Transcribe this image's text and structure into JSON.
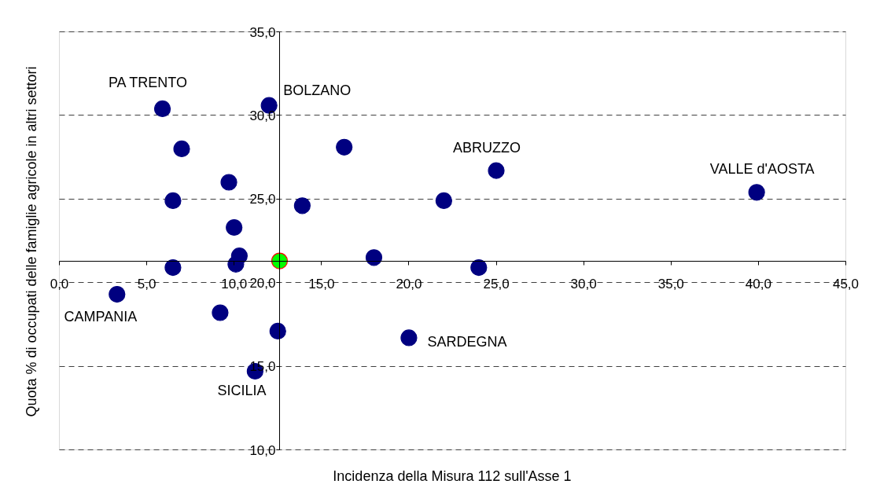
{
  "chart_data": {
    "type": "scatter",
    "xlabel": "Incidenza della Misura 112 sull'Asse 1",
    "ylabel": "Quota % di occupati delle famiglie agricole in altri settori",
    "xlim": [
      0,
      45
    ],
    "ylim": [
      10,
      35
    ],
    "xticks": [
      {
        "value": 0,
        "label": "0,0"
      },
      {
        "value": 5,
        "label": "5,0"
      },
      {
        "value": 10,
        "label": "10,0"
      },
      {
        "value": 15,
        "label": "15,0"
      },
      {
        "value": 20,
        "label": "20,0"
      },
      {
        "value": 25,
        "label": "25,0"
      },
      {
        "value": 30,
        "label": "30,0"
      },
      {
        "value": 35,
        "label": "35,0"
      },
      {
        "value": 40,
        "label": "40,0"
      },
      {
        "value": 45,
        "label": "45,0"
      }
    ],
    "yticks": [
      {
        "value": 10,
        "label": "10,0"
      },
      {
        "value": 15,
        "label": "15,0"
      },
      {
        "value": 20,
        "label": "20,0"
      },
      {
        "value": 25,
        "label": "25,0"
      },
      {
        "value": 30,
        "label": "30,0"
      },
      {
        "value": 35,
        "label": "35,0"
      }
    ],
    "grid": "y",
    "marker": "circle",
    "series": [
      {
        "color": "#000080",
        "x": [
          5.9,
          7.0,
          9.7,
          6.5,
          10.0,
          10.3,
          12.0,
          16.3,
          13.9,
          25.0,
          22.0,
          39.9,
          6.5,
          10.1,
          18.0,
          3.3,
          9.2,
          12.5,
          20.0,
          11.2,
          24.0
        ],
        "values": [
          30.4,
          28.0,
          26.0,
          24.9,
          23.3,
          21.6,
          30.6,
          28.1,
          24.6,
          26.7,
          24.9,
          25.4,
          20.9,
          21.1,
          21.5,
          19.3,
          18.2,
          17.1,
          16.7,
          14.7,
          20.9
        ]
      },
      {
        "color": "#00ff00",
        "x": [
          12.6
        ],
        "values": [
          21.3
        ]
      }
    ],
    "annotations": [
      {
        "text": "PA TRENTO",
        "x": 5.9,
        "y": 30.4
      },
      {
        "text": "BOLZANO",
        "x": 12.0,
        "y": 30.6
      },
      {
        "text": "ABRUZZO",
        "x": 25.0,
        "y": 26.7
      },
      {
        "text": "VALLE d'AOSTA",
        "x": 39.9,
        "y": 25.4
      },
      {
        "text": "CAMPANIA",
        "x": 3.3,
        "y": 19.3
      },
      {
        "text": "SARDEGNA",
        "x": 20.0,
        "y": 16.7
      },
      {
        "text": "SICILIA",
        "x": 11.2,
        "y": 14.7
      }
    ]
  }
}
